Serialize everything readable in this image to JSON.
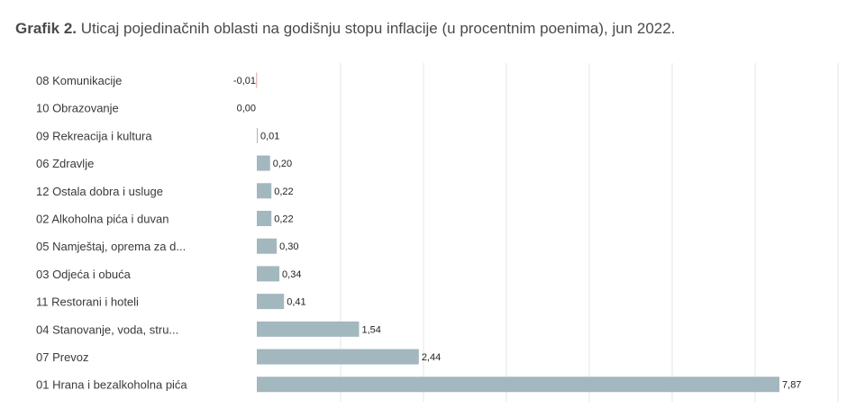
{
  "title": {
    "prefix": "Grafik 2.",
    "text": "Uticaj pojedinačnih oblasti na godišnju stopu inflacije (u procentnim poenima), jun 2022."
  },
  "chart_data": {
    "type": "bar",
    "orientation": "horizontal",
    "categories": [
      "08 Komunikacije",
      "10 Obrazovanje",
      "09 Rekreacija i kultura",
      "06 Zdravlje",
      "12 Ostala dobra i usluge",
      "02 Alkoholna pića i duvan",
      "05 Namještaj, oprema za d...",
      "03 Odjeća i obuća",
      "11 Restorani i hoteli",
      "04 Stanovanje, voda, stru...",
      "07 Prevoz",
      "01 Hrana i bezalkoholna pića"
    ],
    "values": [
      -0.01,
      0.0,
      0.01,
      0.2,
      0.22,
      0.22,
      0.3,
      0.34,
      0.41,
      1.54,
      2.44,
      7.87
    ],
    "value_labels": [
      "-0,01",
      "0,00",
      "0,01",
      "0,20",
      "0,22",
      "0,22",
      "0,30",
      "0,34",
      "0,41",
      "1,54",
      "2,44",
      "7,87"
    ],
    "xlim": [
      0,
      8.7
    ],
    "grid": true,
    "bar_color": "#a3b7bf",
    "negative_color": "#e5a3a3",
    "grid_color": "#e4e4e4",
    "xlabel": "",
    "ylabel": ""
  }
}
